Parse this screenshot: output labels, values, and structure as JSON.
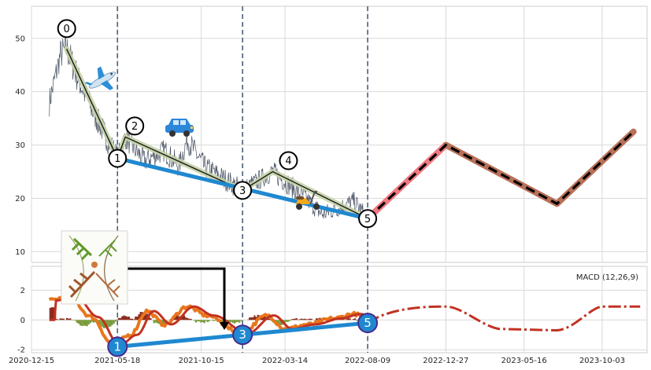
{
  "chart_data": {
    "type": "line",
    "title": "",
    "xlabel": "",
    "ylabel": "",
    "x_ticks": [
      "2020-12-15",
      "2021-05-18",
      "2021-10-15",
      "2022-03-14",
      "2022-08-09",
      "2022-12-27",
      "2023-05-16",
      "2023-10-03"
    ],
    "price_panel": {
      "ylim": [
        8,
        56
      ],
      "y_ticks": [
        10,
        20,
        30,
        40,
        50
      ],
      "wave_points": [
        {
          "label": "0",
          "date": "2021-02-16",
          "value": 48
        },
        {
          "label": "1",
          "date": "2021-05-18",
          "value": 27.5
        },
        {
          "label": "2",
          "date": "2021-06-01",
          "value": 31.5
        },
        {
          "label": "3",
          "date": "2021-12-28",
          "value": 21.5
        },
        {
          "label": "4",
          "date": "2022-02-20",
          "value": 25
        },
        {
          "label": "5",
          "date": "2022-08-09",
          "value": 16.2
        }
      ],
      "trend_line": [
        {
          "date": "2021-05-18",
          "value": 27.5
        },
        {
          "date": "2022-08-09",
          "value": 16.2
        }
      ],
      "projection": [
        {
          "date": "2022-08-09",
          "value": 16.2
        },
        {
          "date": "2022-12-27",
          "value": 30
        },
        {
          "date": "2023-07-14",
          "value": 19
        },
        {
          "date": "2023-11-28",
          "value": 32.5
        }
      ],
      "vertical_markers": [
        "2021-05-18",
        "2021-12-28",
        "2022-08-09"
      ]
    },
    "macd_panel": {
      "label": "MACD (12,26,9)",
      "ylim": [
        -2.2,
        3.6
      ],
      "y_ticks": [
        -2,
        0,
        2
      ],
      "badges": [
        {
          "label": "1",
          "date": "2021-05-18",
          "value": -1.8
        },
        {
          "label": "3",
          "date": "2021-12-28",
          "value": -1.0
        },
        {
          "label": "5",
          "date": "2022-08-09",
          "value": -0.2
        }
      ]
    }
  },
  "icons": [
    "airplane-icon",
    "car-icon",
    "scooter-icon",
    "plant-illustration"
  ]
}
